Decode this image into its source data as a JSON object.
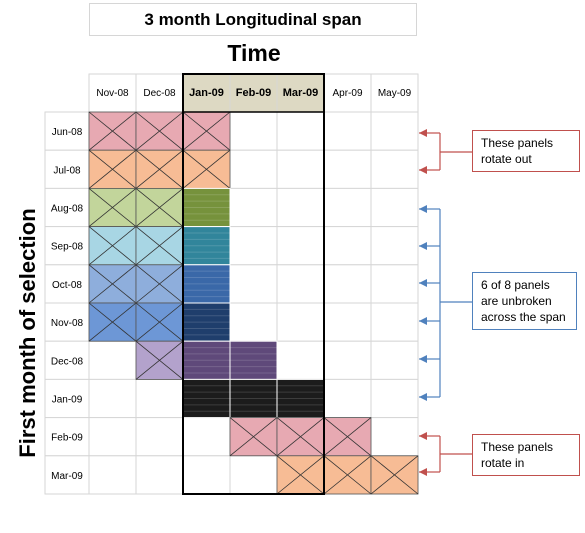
{
  "title": "3 month Longitudinal span",
  "x_axis_title": "Time",
  "y_axis_title": "First month of selection",
  "months": [
    "Nov-08",
    "Dec-08",
    "Jan-09",
    "Feb-09",
    "Mar-09",
    "Apr-09",
    "May-09"
  ],
  "span_months": [
    "Jan-09",
    "Feb-09",
    "Mar-09"
  ],
  "rows": [
    {
      "label": "Jun-08",
      "start": "Nov-08",
      "color": "#e7a9b2"
    },
    {
      "label": "Jul-08",
      "start": "Nov-08",
      "color": "#f7bc95"
    },
    {
      "label": "Aug-08",
      "start": "Nov-08",
      "color": "#c2d59b"
    },
    {
      "label": "Sep-08",
      "start": "Nov-08",
      "color": "#a8d6e4"
    },
    {
      "label": "Oct-08",
      "start": "Nov-08",
      "color": "#8eaedc"
    },
    {
      "label": "Nov-08",
      "start": "Nov-08",
      "color": "#6d97d6"
    },
    {
      "label": "Dec-08",
      "start": "Dec-08",
      "color": "#b3a2cc"
    },
    {
      "label": "Jan-09",
      "start": "Jan-09",
      "color": "#d0d0d0"
    },
    {
      "label": "Feb-09",
      "start": "Feb-09",
      "color": "#e7a9b2"
    },
    {
      "label": "Mar-09",
      "start": "Mar-09",
      "color": "#f7bc95"
    }
  ],
  "span_colors": {
    "Aug-08": "#76923c",
    "Sep-08": "#31859b",
    "Oct-08": "#3a68a8",
    "Nov-08": "#1f3e6c",
    "Dec-08": "#5f497a",
    "Jan-09": "#1c1c1c"
  },
  "notes": [
    {
      "text": "These panels rotate out",
      "color": "#c0504d"
    },
    {
      "text": "6 of 8 panels are unbroken across the span",
      "color": "#4f81bd"
    },
    {
      "text": "These panels rotate in",
      "color": "#c0504d"
    }
  ]
}
